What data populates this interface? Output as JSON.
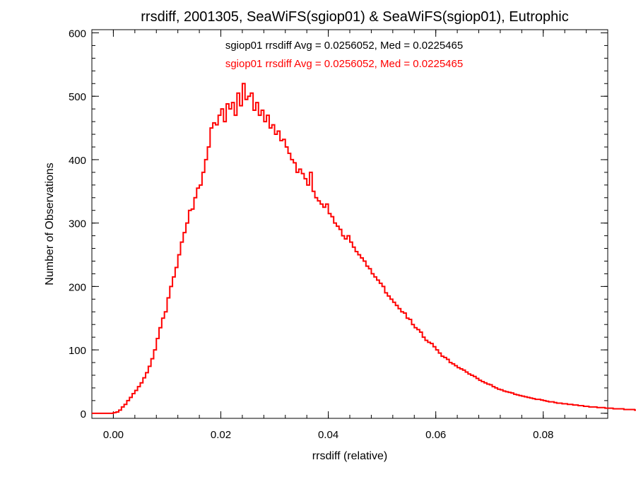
{
  "chart_data": {
    "type": "histogram",
    "title": "rrsdiff, 2001305, SeaWiFS(sgiop01) & SeaWiFS(sgiop01), Eutrophic",
    "xlabel": "rrsdiff (relative)",
    "ylabel": "Number of Observations",
    "xlim": [
      -0.004,
      0.092
    ],
    "ylim": [
      -8,
      605
    ],
    "xticks": [
      0.0,
      0.02,
      0.04,
      0.06,
      0.08
    ],
    "xtick_labels": [
      "0.00",
      "0.02",
      "0.04",
      "0.06",
      "0.08"
    ],
    "yticks": [
      0,
      100,
      200,
      300,
      400,
      500,
      600
    ],
    "ytick_labels": [
      "0",
      "100",
      "200",
      "300",
      "400",
      "500",
      "600"
    ],
    "bin_width": 0.0005,
    "bin_start": -0.004,
    "series": [
      {
        "name": "sgiop01",
        "color": "#ff0000",
        "stats_text": "sgiop01 rrsdiff Avg = 0.0256052, Med = 0.0225465",
        "counts": [
          0,
          0,
          0,
          0,
          0,
          0,
          0,
          0,
          1,
          2,
          5,
          10,
          14,
          20,
          25,
          31,
          36,
          42,
          48,
          56,
          64,
          74,
          86,
          100,
          118,
          135,
          150,
          160,
          182,
          200,
          215,
          230,
          250,
          270,
          285,
          300,
          320,
          322,
          340,
          355,
          360,
          380,
          400,
          420,
          450,
          458,
          455,
          470,
          480,
          460,
          488,
          480,
          490,
          470,
          505,
          485,
          520,
          495,
          500,
          505,
          478,
          490,
          470,
          478,
          460,
          470,
          450,
          455,
          440,
          445,
          430,
          432,
          420,
          410,
          400,
          395,
          380,
          385,
          378,
          370,
          360,
          380,
          350,
          340,
          335,
          330,
          325,
          330,
          315,
          310,
          300,
          295,
          290,
          280,
          275,
          280,
          270,
          262,
          255,
          250,
          245,
          240,
          232,
          228,
          220,
          215,
          210,
          205,
          200,
          190,
          185,
          180,
          175,
          170,
          165,
          160,
          158,
          150,
          148,
          140,
          135,
          132,
          128,
          120,
          115,
          112,
          110,
          105,
          100,
          95,
          90,
          88,
          85,
          80,
          78,
          75,
          72,
          70,
          68,
          65,
          62,
          60,
          58,
          55,
          52,
          50,
          48,
          46,
          45,
          42,
          40,
          38,
          37,
          35,
          34,
          33,
          32,
          30,
          29,
          28,
          27,
          26,
          25,
          24,
          23,
          22,
          22,
          21,
          20,
          19,
          18,
          18,
          17,
          16,
          16,
          15,
          15,
          14,
          14,
          13,
          13,
          12,
          12,
          11,
          11,
          10,
          10,
          10,
          9,
          9,
          9,
          8,
          8,
          8,
          7,
          7,
          7,
          7,
          6,
          6,
          6,
          6,
          5,
          5,
          5,
          5
        ]
      }
    ],
    "grid": false
  }
}
